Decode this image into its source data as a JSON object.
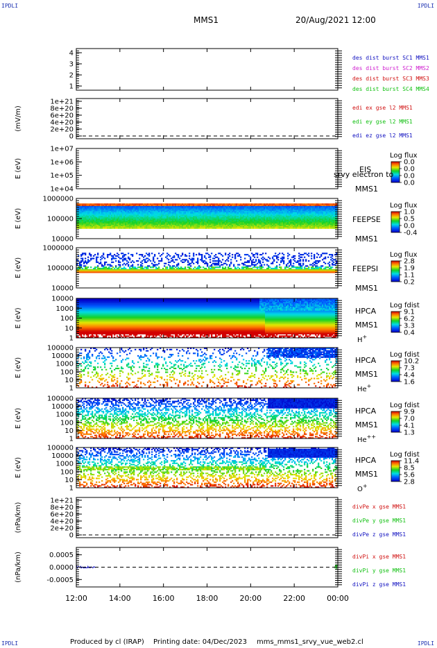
{
  "header": {
    "corner_left_top": "IPDLI",
    "corner_right_top": "IPDLI",
    "corner_left_bottom": "IPDLI",
    "corner_right_bottom": "IPDLI",
    "spacecraft": "MMS1",
    "datetime": "20/Aug/2021 12:00"
  },
  "footer": {
    "produced_by": "Produced by cl (IRAP)",
    "printing_date": "Printing date: 04/Dec/2023",
    "script_name": "mms_mms1_srvy_vue_web2.cl"
  },
  "colors": {
    "blue": "#1010c0",
    "magenta": "#d020d0",
    "red": "#d01010",
    "green": "#10c010",
    "frame": "#000000"
  },
  "chart_data": {
    "type": "heatmap",
    "x_tick_labels": [
      "12:00",
      "14:00",
      "16:00",
      "18:00",
      "20:00",
      "22:00",
      "00:00"
    ],
    "x_range": [
      "20/Aug/2021 12:00",
      "21/Aug/2021 00:00"
    ],
    "panels": [
      {
        "id": "burst",
        "kind": "flags",
        "ylabel": "",
        "yticks": [
          "4",
          "3",
          "2",
          "1"
        ],
        "legend": [
          {
            "text": "des dist burst SC1 MMS1",
            "color": "blue"
          },
          {
            "text": "des dist burst SC2 MMS2",
            "color": "magenta"
          },
          {
            "text": "des dist burst SC3 MMS3",
            "color": "red"
          },
          {
            "text": "des dist burst SC4 MMS4",
            "color": "green"
          }
        ]
      },
      {
        "id": "edi",
        "kind": "line",
        "ylabel": "(mV/m)",
        "yticks": [
          "1e+21",
          "8e+20",
          "6e+20",
          "4e+20",
          "2e+20",
          "0"
        ],
        "zero_line": true,
        "legend": [
          {
            "text": "edi ex gse l2 MMS1",
            "color": "red"
          },
          {
            "text": "edi ey gse l2 MMS1",
            "color": "green"
          },
          {
            "text": "edi ez gse l2 MMS1",
            "color": "blue"
          }
        ]
      },
      {
        "id": "eis",
        "kind": "spectrogram",
        "ylabel": "E (eV)",
        "yticks": [
          "1e+07",
          "1e+06",
          "1e+05",
          "1e+04"
        ],
        "instrument": [
          "EIS",
          "MMS1"
        ],
        "overlay_text": "srvy electron to",
        "cbar_title": "Log flux",
        "cbar_ticks": [
          "0.0",
          "0.0",
          "0.0",
          "0.0"
        ],
        "empty": true
      },
      {
        "id": "feepse",
        "kind": "spectrogram",
        "ylabel": "E (eV)",
        "yticks": [
          "1000000",
          "100000",
          "10000"
        ],
        "instrument": [
          "FEEPSE",
          "MMS1"
        ],
        "cbar_title": "Log flux",
        "cbar_ticks": [
          "1.0",
          "0.5",
          "0.0",
          "-0.4"
        ],
        "pattern": "feepse"
      },
      {
        "id": "feepsi",
        "kind": "spectrogram",
        "ylabel": "E (eV)",
        "yticks": [
          "1000000",
          "100000",
          "10000"
        ],
        "instrument": [
          "FEEPSI",
          "MMS1"
        ],
        "cbar_title": "Log flux",
        "cbar_ticks": [
          "2.8",
          "1.9",
          "1.1",
          "0.2"
        ],
        "pattern": "feepsi"
      },
      {
        "id": "hpca_h",
        "kind": "spectrogram",
        "ylabel": "E (eV)",
        "yticks": [
          "10000",
          "1000",
          "100",
          "10",
          "1"
        ],
        "instrument": [
          "HPCA",
          "MMS1"
        ],
        "species": "H",
        "species_sup": "+",
        "cbar_title": "Log fdist",
        "cbar_ticks": [
          "9.1",
          "6.2",
          "3.3",
          "0.4"
        ],
        "pattern": "hplus"
      },
      {
        "id": "hpca_he",
        "kind": "spectrogram",
        "ylabel": "E (eV)",
        "yticks": [
          "100000",
          "10000",
          "1000",
          "100",
          "10",
          "1"
        ],
        "instrument": [
          "HPCA",
          "MMS1"
        ],
        "species": "He",
        "species_sup": "+",
        "cbar_title": "Log fdist",
        "cbar_ticks": [
          "10.2",
          "7.3",
          "4.4",
          "1.6"
        ],
        "pattern": "heplus"
      },
      {
        "id": "hpca_hepp",
        "kind": "spectrogram",
        "ylabel": "E (eV)",
        "yticks": [
          "100000",
          "10000",
          "1000",
          "100",
          "10",
          "1"
        ],
        "instrument": [
          "HPCA",
          "MMS1"
        ],
        "species": "He",
        "species_sup": "++",
        "cbar_title": "Log fdist",
        "cbar_ticks": [
          "9.9",
          "7.0",
          "4.1",
          "1.3"
        ],
        "pattern": "hepp"
      },
      {
        "id": "hpca_o",
        "kind": "spectrogram",
        "ylabel": "E (eV)",
        "yticks": [
          "100000",
          "10000",
          "1000",
          "100",
          "10",
          "1"
        ],
        "instrument": [
          "HPCA",
          "MMS1"
        ],
        "species": "O",
        "species_sup": "+",
        "cbar_title": "Log fdist",
        "cbar_ticks": [
          "11.4",
          "8.5",
          "5.6",
          "2.8"
        ],
        "pattern": "oplus"
      },
      {
        "id": "divpe",
        "kind": "line",
        "ylabel": "(nPa/km)",
        "yticks": [
          "1e+21",
          "8e+20",
          "6e+20",
          "4e+20",
          "2e+20",
          "0"
        ],
        "zero_line": true,
        "legend": [
          {
            "text": "divPe x gse MMS1",
            "color": "red"
          },
          {
            "text": "divPe y gse MMS1",
            "color": "green"
          },
          {
            "text": "divPe z gse MMS1",
            "color": "blue"
          }
        ]
      },
      {
        "id": "divpi",
        "kind": "line",
        "ylabel": "(nPa/km)",
        "yticks": [
          "0.0005",
          "0.0000",
          "-0.0005"
        ],
        "ylim": [
          -0.0008,
          0.0008
        ],
        "zero_line": true,
        "legend": [
          {
            "text": "divPi x gse MMS1",
            "color": "red"
          },
          {
            "text": "divPi y gse MMS1",
            "color": "green"
          },
          {
            "text": "divPi z gse MMS1",
            "color": "blue"
          }
        ],
        "data_segments": [
          {
            "x_start_h": 0.0,
            "x_end_h": 0.9,
            "amplitude": 4e-05,
            "color": "blue"
          },
          {
            "x_start_h": 11.85,
            "x_end_h": 12.0,
            "amplitude": 0.0001,
            "color": "green"
          }
        ]
      }
    ]
  }
}
